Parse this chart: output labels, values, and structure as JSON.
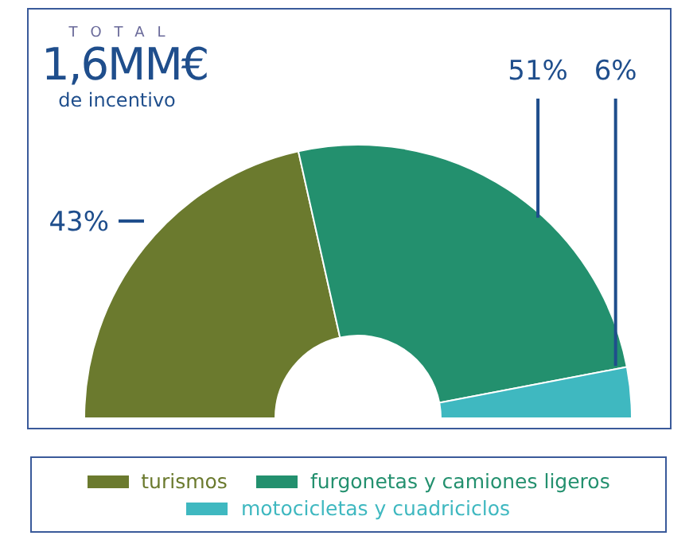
{
  "chart_data": {
    "type": "donut",
    "title": "1,6MM€",
    "subtitle": "de incentivo",
    "annotations": [
      "TOTAL"
    ],
    "categories": [
      "turismos",
      "furgonetas y camiones ligeros",
      "motocicletas y cuadriciclos"
    ],
    "values": [
      43,
      51,
      6
    ],
    "colors": [
      "#6b7a2e",
      "#23906e",
      "#3fb8c0"
    ],
    "value_labels": [
      "43%",
      "51%",
      "6%"
    ],
    "legend": "bottom"
  }
}
